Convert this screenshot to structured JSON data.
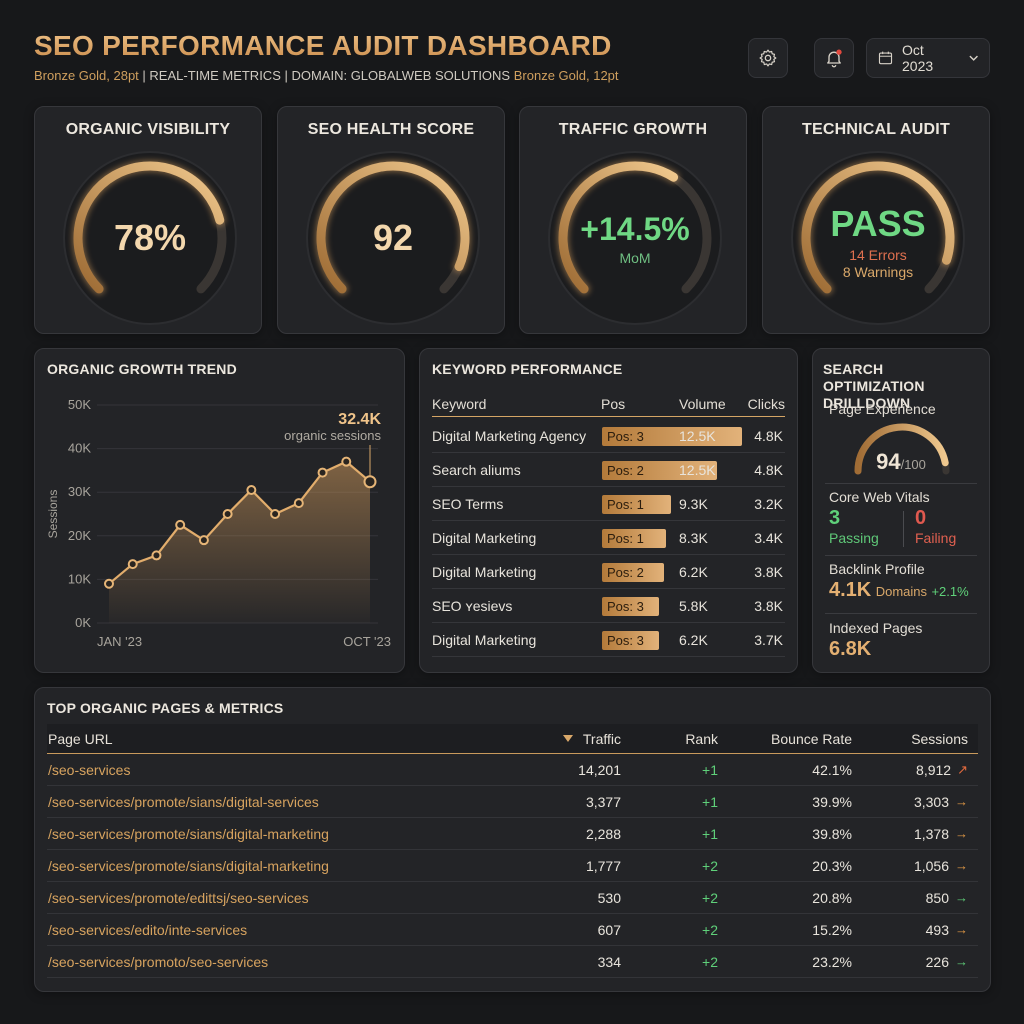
{
  "header": {
    "title": "SEO PERFORMANCE AUDIT DASHBOARD",
    "subtitle_note1": "Bronze Gold, 28pt",
    "subtitle_main": "| REAL-TIME METRICS | DOMAIN: GLOBALWEB SOLUTIONS",
    "subtitle_note2": "Bronze Gold, 12pt",
    "date_label": "Oct 2023",
    "settings_icon": "gear-icon",
    "notification_icon": "bell-icon",
    "calendar_icon": "calendar-icon"
  },
  "kpis": {
    "visibility": {
      "title": "ORGANIC VISIBILITY",
      "value": "78%",
      "fill": 0.78
    },
    "health": {
      "title": "SEO HEALTH SCORE",
      "value": "92",
      "fill": 0.92
    },
    "traffic": {
      "title": "TRAFFIC GROWTH",
      "value": "+14.5%",
      "sub": "MoM",
      "fill": 0.62
    },
    "technical": {
      "title": "TECHNICAL AUDIT",
      "value": "PASS",
      "errors": "14 Errors",
      "warnings": "8 Warnings",
      "fill": 0.9
    }
  },
  "trend": {
    "title": "ORGANIC GROWTH TREND",
    "callout_value": "32.4K",
    "callout_label": "organic sessions",
    "x_start": "JAN '23",
    "x_end": "OCT '23"
  },
  "chart_data": {
    "type": "area",
    "title": "ORGANIC GROWTH TREND",
    "ylabel": "Sessions",
    "y_ticks": [
      "50K",
      "40K",
      "30K",
      "20K",
      "10K",
      "0K"
    ],
    "ylim": [
      0,
      50000
    ],
    "x_labels": [
      "JAN '23",
      "OCT '23"
    ],
    "values": [
      9000,
      13500,
      15500,
      22500,
      19000,
      25000,
      30500,
      25000,
      27500,
      34500,
      37000,
      32400
    ],
    "grid": true
  },
  "keywords": {
    "title": "KEYWORD PERFORMANCE",
    "headers": {
      "keyword": "Keyword",
      "pos": "Pos",
      "volume": "Volume",
      "clicks": "Clicks"
    },
    "rows": [
      {
        "keyword": "Digital Marketing Agency",
        "pos": "Pos: 3",
        "volume": "12.5K",
        "clicks": "4.8K",
        "bar": 1.0
      },
      {
        "keyword": "Search aliums",
        "pos": "Pos: 2",
        "volume": "12.5K",
        "clicks": "4.8K",
        "bar": 0.82
      },
      {
        "keyword": "SEO Terms",
        "pos": "Pos: 1",
        "volume": "9.3K",
        "clicks": "3.2K",
        "bar": 0.49
      },
      {
        "keyword": "Digital Marketing",
        "pos": "Pos: 1",
        "volume": "8.3K",
        "clicks": "3.4K",
        "bar": 0.46
      },
      {
        "keyword": "Digital Marketing",
        "pos": "Pos: 2",
        "volume": "6.2K",
        "clicks": "3.8K",
        "bar": 0.44
      },
      {
        "keyword": "SEO ʏesievs",
        "pos": "Pos: 3",
        "volume": "5.8K",
        "clicks": "3.8K",
        "bar": 0.41
      },
      {
        "keyword": "Digital Marketing",
        "pos": "Pos: 3",
        "volume": "6.2K",
        "clicks": "3.7K",
        "bar": 0.41
      }
    ]
  },
  "drilldown": {
    "title_line1": "SEARCH OPTIMIZATION",
    "title_line2": "DRILLDOWN",
    "page_experience_label": "Page Experience",
    "page_experience_value": "94",
    "page_experience_max": "/100",
    "page_experience_fill": 0.94,
    "cwv_label": "Core Web Vitals",
    "cwv_passing_value": "3",
    "cwv_passing_label": "Passing",
    "cwv_failing_value": "0",
    "cwv_failing_label": "Failing",
    "backlink_label": "Backlink Profile",
    "backlink_value": "4.1K",
    "backlink_unit": "Domains",
    "backlink_change": "+2.1%",
    "indexed_label": "Indexed Pages",
    "indexed_value": "6.8K"
  },
  "pages": {
    "title": "TOP ORGANIC PAGES & METRICS",
    "headers": {
      "url": "Page URL",
      "traffic": "Traffic",
      "rank": "Rank",
      "bounce": "Bounce Rate",
      "sessions": "Sessions"
    },
    "sort_icon": "sort-down-icon",
    "rows": [
      {
        "url": "/seo-services",
        "traffic": "14,201",
        "rank": "+1",
        "bounce": "42.1%",
        "sessions": "8,912",
        "arrow": "↗",
        "arrow_color": "#e26a3e"
      },
      {
        "url": "/seo-services/promote/sians/digital-services",
        "traffic": "3,377",
        "rank": "+1",
        "bounce": "39.9%",
        "sessions": "3,303",
        "arrow": "→",
        "arrow_color": "#e39a45"
      },
      {
        "url": "/seo-services/promote/sians/digital-marketing",
        "traffic": "2,288",
        "rank": "+1",
        "bounce": "39.8%",
        "sessions": "1,378",
        "arrow": "→",
        "arrow_color": "#e39a45"
      },
      {
        "url": "/seo-services/promote/sians/digital-marketing",
        "traffic": "1,777",
        "rank": "+2",
        "bounce": "20.3%",
        "sessions": "1,056",
        "arrow": "→",
        "arrow_color": "#e39a45"
      },
      {
        "url": "/seo-services/promote/edittsj/seo-services",
        "traffic": "530",
        "rank": "+2",
        "bounce": "20.8%",
        "sessions": "850",
        "arrow": "→",
        "arrow_color": "#5fd17a"
      },
      {
        "url": "/seo-services/edito/inte-services",
        "traffic": "607",
        "rank": "+2",
        "bounce": "15.2%",
        "sessions": "493",
        "arrow": "→",
        "arrow_color": "#e39a45"
      },
      {
        "url": "/seo-services/promoto/seo-services",
        "traffic": "334",
        "rank": "+2",
        "bounce": "23.2%",
        "sessions": "226",
        "arrow": "→",
        "arrow_color": "#5fd17a"
      }
    ]
  },
  "colors": {
    "accent": "#d9a86a",
    "positive": "#5fd17a",
    "negative": "#e0594f",
    "panel": "#232427",
    "background": "#17181a"
  }
}
